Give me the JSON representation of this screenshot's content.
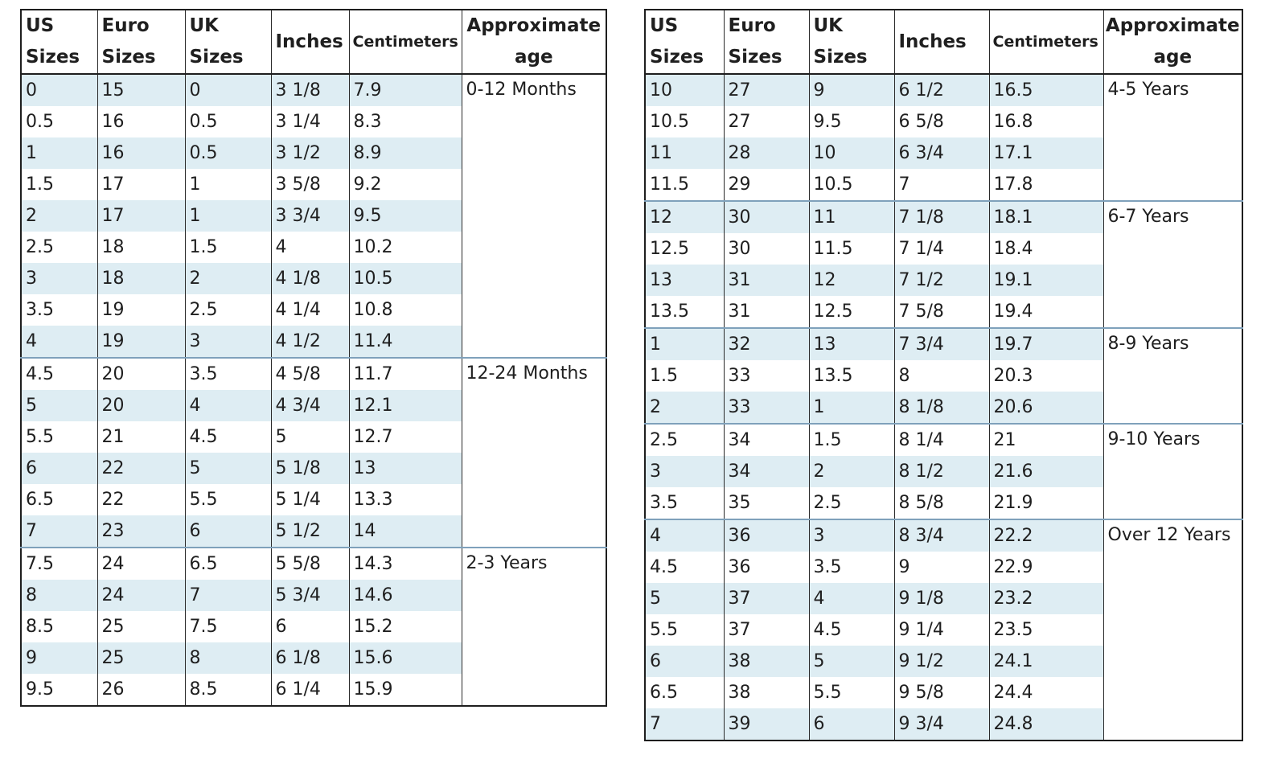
{
  "headers": [
    {
      "label": "US\nSizes"
    },
    {
      "label": "Euro\nSizes"
    },
    {
      "label": "UK\nSizes"
    },
    {
      "label": "Inches"
    },
    {
      "label": "Centimeters"
    },
    {
      "label": "Approximate\nage"
    }
  ],
  "tables": [
    {
      "groups": [
        {
          "age": "0-12 Months",
          "rows": [
            [
              "0",
              "15",
              "0",
              "3 1/8",
              "7.9"
            ],
            [
              "0.5",
              "16",
              "0.5",
              "3 1/4",
              "8.3"
            ],
            [
              "1",
              "16",
              "0.5",
              "3 1/2",
              "8.9"
            ],
            [
              "1.5",
              "17",
              "1",
              "3 5/8",
              "9.2"
            ],
            [
              "2",
              "17",
              "1",
              "3 3/4",
              "9.5"
            ],
            [
              "2.5",
              "18",
              "1.5",
              "4",
              "10.2"
            ],
            [
              "3",
              "18",
              "2",
              "4 1/8",
              "10.5"
            ],
            [
              "3.5",
              "19",
              "2.5",
              "4 1/4",
              "10.8"
            ],
            [
              "4",
              "19",
              "3",
              "4 1/2",
              "11.4"
            ]
          ]
        },
        {
          "age": "12-24 Months",
          "rows": [
            [
              "4.5",
              "20",
              "3.5",
              "4 5/8",
              "11.7"
            ],
            [
              "5",
              "20",
              "4",
              "4 3/4",
              "12.1"
            ],
            [
              "5.5",
              "21",
              "4.5",
              "5",
              "12.7"
            ],
            [
              "6",
              "22",
              "5",
              "5 1/8",
              "13"
            ],
            [
              "6.5",
              "22",
              "5.5",
              "5 1/4",
              "13.3"
            ],
            [
              "7",
              "23",
              "6",
              "5 1/2",
              "14"
            ]
          ]
        },
        {
          "age": "2-3 Years",
          "rows": [
            [
              "7.5",
              "24",
              "6.5",
              "5 5/8",
              "14.3"
            ],
            [
              "8",
              "24",
              "7",
              "5 3/4",
              "14.6"
            ],
            [
              "8.5",
              "25",
              "7.5",
              "6",
              "15.2"
            ],
            [
              "9",
              "25",
              "8",
              "6 1/8",
              "15.6"
            ],
            [
              "9.5",
              "26",
              "8.5",
              "6 1/4",
              "15.9"
            ]
          ]
        }
      ]
    },
    {
      "groups": [
        {
          "age": "4-5 Years",
          "rows": [
            [
              "10",
              "27",
              "9",
              "6 1/2",
              "16.5"
            ],
            [
              "10.5",
              "27",
              "9.5",
              "6 5/8",
              "16.8"
            ],
            [
              "11",
              "28",
              "10",
              "6 3/4",
              "17.1"
            ],
            [
              "11.5",
              "29",
              "10.5",
              "7",
              "17.8"
            ]
          ]
        },
        {
          "age": "6-7 Years",
          "rows": [
            [
              "12",
              "30",
              "11",
              "7 1/8",
              "18.1"
            ],
            [
              "12.5",
              "30",
              "11.5",
              "7 1/4",
              "18.4"
            ],
            [
              "13",
              "31",
              "12",
              "7 1/2",
              "19.1"
            ],
            [
              "13.5",
              "31",
              "12.5",
              "7 5/8",
              "19.4"
            ]
          ]
        },
        {
          "age": "8-9 Years",
          "rows": [
            [
              "1",
              "32",
              "13",
              "7 3/4",
              "19.7"
            ],
            [
              "1.5",
              "33",
              "13.5",
              "8",
              "20.3"
            ],
            [
              "2",
              "33",
              "1",
              "8 1/8",
              "20.6"
            ]
          ]
        },
        {
          "age": "9-10 Years",
          "rows": [
            [
              "2.5",
              "34",
              "1.5",
              "8 1/4",
              "21"
            ],
            [
              "3",
              "34",
              "2",
              "8 1/2",
              "21.6"
            ],
            [
              "3.5",
              "35",
              "2.5",
              "8 5/8",
              "21.9"
            ]
          ]
        },
        {
          "age": "Over 12 Years",
          "rows": [
            [
              "4",
              "36",
              "3",
              "8 3/4",
              "22.2"
            ],
            [
              "4.5",
              "36",
              "3.5",
              "9",
              "22.9"
            ],
            [
              "5",
              "37",
              "4",
              "9 1/8",
              "23.2"
            ],
            [
              "5.5",
              "37",
              "4.5",
              "9 1/4",
              "23.5"
            ],
            [
              "6",
              "38",
              "5",
              "9 1/2",
              "24.1"
            ],
            [
              "6.5",
              "38",
              "5.5",
              "9 5/8",
              "24.4"
            ],
            [
              "7",
              "39",
              "6",
              "9 3/4",
              "24.8"
            ]
          ]
        }
      ]
    }
  ]
}
